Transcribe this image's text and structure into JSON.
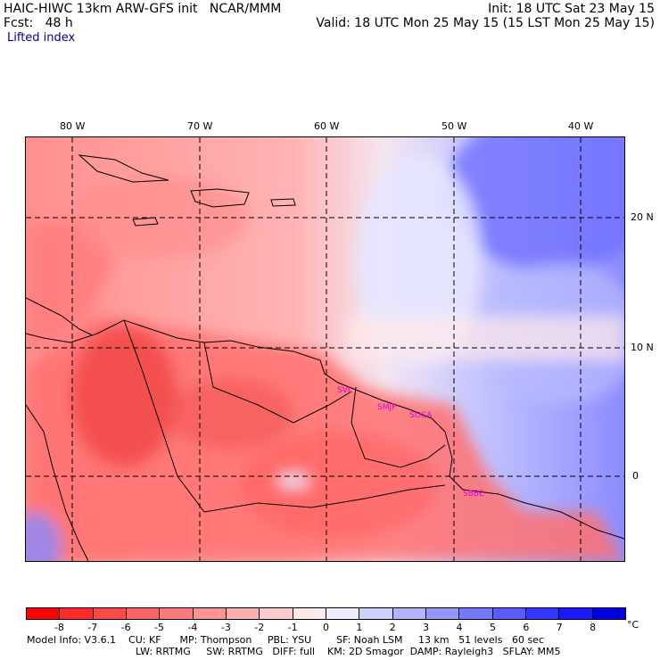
{
  "header": {
    "model_title": "HAIC-HIWC 13km ARW-GFS init   NCAR/MMM",
    "init": "Init: 18 UTC Sat 23 May 15",
    "fcst": "Fcst:   48 h",
    "valid": "Valid: 18 UTC Mon 25 May 15 (15 LST Mon 25 May 15)",
    "field": "Lifted index"
  },
  "map": {
    "longitude_labels": [
      "80 W",
      "70 W",
      "60 W",
      "50 W",
      "40 W"
    ],
    "latitude_labels": [
      "20 N",
      "10 N",
      "0"
    ],
    "stations": [
      "SVL",
      "SMJP",
      "SOCA",
      "SBBE"
    ]
  },
  "colorbar": {
    "unit": "°C",
    "tick_labels": [
      "-8",
      "-7",
      "-6",
      "-5",
      "-4",
      "-3",
      "-2",
      "-1",
      "0",
      "1",
      "2",
      "3",
      "4",
      "5",
      "6",
      "7",
      "8"
    ],
    "colors": [
      "#ff0000",
      "#ff2a2a",
      "#ff4848",
      "#ff6262",
      "#fd7979",
      "#ff9292",
      "#ffb0b0",
      "#ffcaca",
      "#ffe9e9",
      "#ececff",
      "#d0d0ff",
      "#b3b3ff",
      "#9595ff",
      "#7878ff",
      "#5a5aff",
      "#3636ff",
      "#1a1aff",
      "#0000e0"
    ]
  },
  "model_info": {
    "line1": "Model Info: V3.6.1    CU: KF      MP: Thompson     PBL: YSU        SF: Noah LSM     13 km   51 levels   60 sec",
    "line2": "LW: RRTMG     SW: RRTMG   DIFF: full    KM: 2D Smagor  DAMP: Rayleigh3   SFLAY: MM5"
  }
}
